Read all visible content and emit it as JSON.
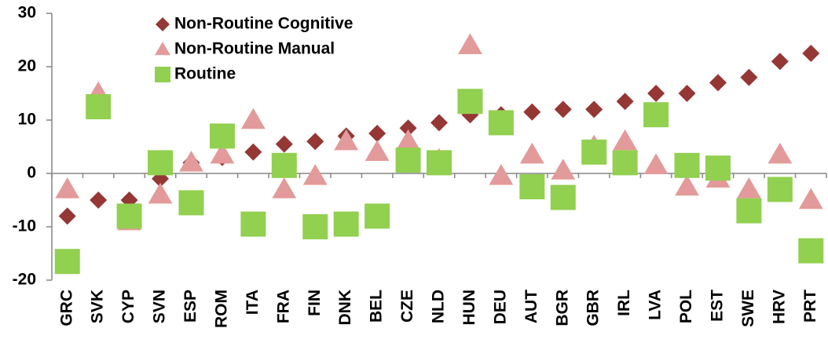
{
  "chart_data": {
    "type": "scatter",
    "categories": [
      "GRC",
      "SVK",
      "CYP",
      "SVN",
      "ESP",
      "ROM",
      "ITA",
      "FRA",
      "FIN",
      "DNK",
      "BEL",
      "CZE",
      "NLD",
      "HUN",
      "DEU",
      "AUT",
      "BGR",
      "GBR",
      "IRL",
      "LVA",
      "POL",
      "EST",
      "SWE",
      "HRV",
      "PRT"
    ],
    "series": [
      {
        "name": "Non-Routine Cognitive",
        "color": "#953735",
        "marker": "diamond",
        "values": [
          -8,
          -5,
          -5,
          -1,
          2,
          3,
          4,
          5.5,
          6,
          7,
          7.5,
          8.5,
          9.5,
          11,
          11,
          11.5,
          12,
          12,
          13.5,
          15,
          15,
          17,
          18,
          21,
          22.5
        ]
      },
      {
        "name": "Non-Routine Manual",
        "color": "#e39a9a",
        "marker": "triangle",
        "values": [
          -3,
          15,
          -9,
          -4,
          2,
          3.5,
          10,
          -3,
          -0.5,
          6,
          4,
          6,
          2.5,
          24,
          -0.5,
          3.5,
          0.5,
          5,
          6,
          1.5,
          -2.5,
          -1,
          -3,
          3.5,
          -5
        ]
      },
      {
        "name": "Routine",
        "color": "#92d050",
        "marker": "square",
        "values": [
          -16.5,
          12.5,
          -8,
          2,
          -5.5,
          7,
          -9.5,
          1.5,
          -10,
          -9.5,
          -8,
          2.5,
          2,
          13.5,
          9.5,
          -2.5,
          -4.5,
          4,
          2,
          11,
          1.5,
          1,
          -7,
          -3,
          -14.5
        ]
      }
    ],
    "ylim": [
      -20,
      30
    ],
    "yticks": [
      -20,
      -10,
      0,
      10,
      20,
      30
    ],
    "legend": "upper-left"
  }
}
